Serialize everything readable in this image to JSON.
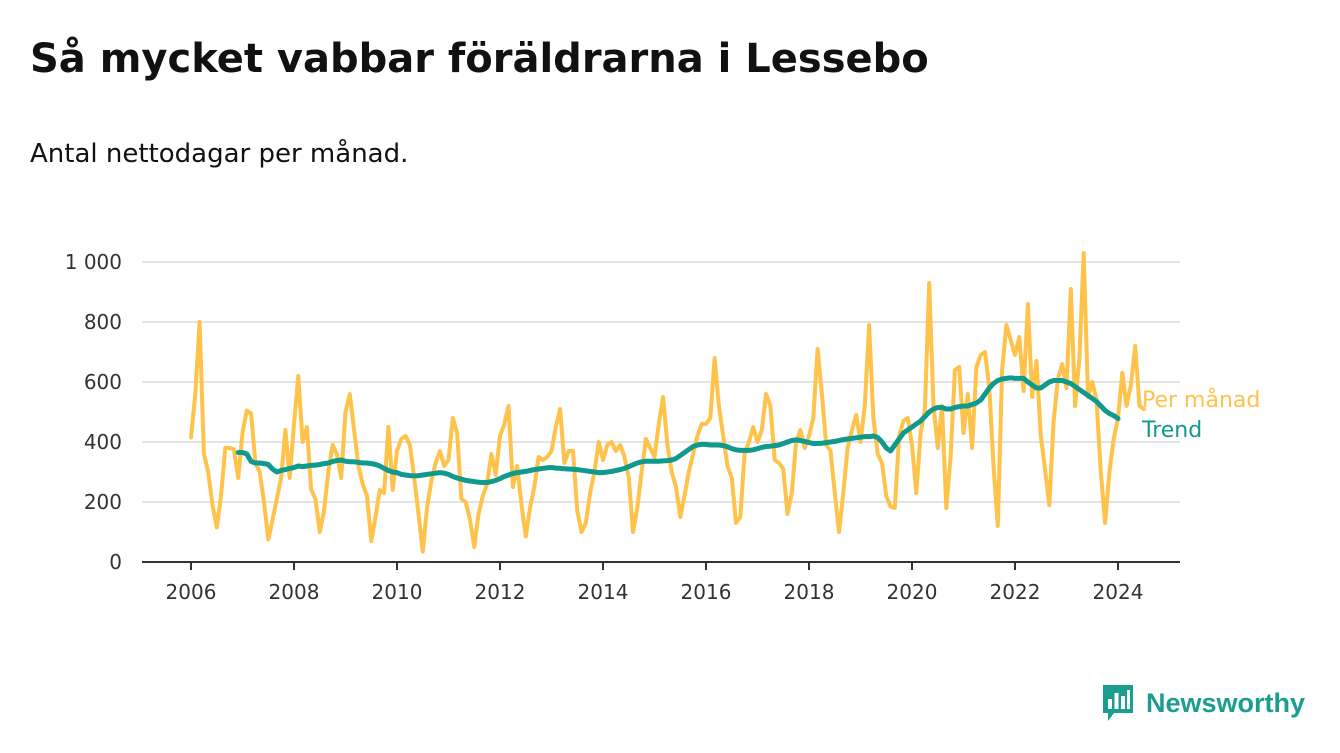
{
  "title": "Så mycket vabbar föräldrarna i Lessebo",
  "subtitle": "Antal nettodagar per månad.",
  "brand": {
    "name": "Newsworthy",
    "color": "#1a9e8f",
    "icon": "bar-chart-speech-bubble-icon"
  },
  "chart_data": {
    "type": "line",
    "xlabel": "",
    "ylabel": "",
    "x_ticks": [
      "2006",
      "2008",
      "2010",
      "2012",
      "2014",
      "2016",
      "2018",
      "2020",
      "2022",
      "2024"
    ],
    "y_ticks": [
      "0",
      "200",
      "400",
      "600",
      "800",
      "1 000"
    ],
    "ylim": [
      0,
      1050
    ],
    "xlim": [
      2005.0,
      2025.2
    ],
    "grid": true,
    "legend": "inline labels at line ends",
    "series": [
      {
        "name": "Per månad",
        "color": "#ffc24a",
        "start": 2006.0,
        "step_months": 1,
        "values": [
          415,
          560,
          800,
          360,
          300,
          190,
          115,
          220,
          380,
          380,
          375,
          280,
          430,
          505,
          495,
          330,
          300,
          200,
          75,
          140,
          210,
          280,
          440,
          280,
          460,
          620,
          400,
          450,
          240,
          210,
          100,
          170,
          300,
          390,
          360,
          280,
          500,
          560,
          440,
          320,
          260,
          220,
          70,
          150,
          240,
          230,
          450,
          240,
          370,
          410,
          420,
          390,
          280,
          160,
          35,
          180,
          270,
          330,
          370,
          320,
          340,
          480,
          430,
          210,
          200,
          140,
          50,
          160,
          220,
          260,
          360,
          290,
          420,
          460,
          520,
          250,
          320,
          190,
          85,
          180,
          250,
          350,
          340,
          350,
          370,
          450,
          510,
          330,
          370,
          370,
          170,
          100,
          130,
          230,
          300,
          400,
          340,
          390,
          400,
          370,
          390,
          350,
          280,
          100,
          180,
          300,
          410,
          380,
          350,
          460,
          550,
          390,
          300,
          250,
          150,
          220,
          300,
          360,
          420,
          460,
          460,
          480,
          680,
          520,
          420,
          320,
          280,
          130,
          150,
          360,
          400,
          450,
          400,
          440,
          560,
          520,
          340,
          330,
          310,
          160,
          230,
          400,
          440,
          380,
          420,
          480,
          710,
          560,
          390,
          370,
          230,
          100,
          230,
          380,
          440,
          490,
          400,
          520,
          790,
          480,
          360,
          330,
          220,
          185,
          180,
          420,
          470,
          480,
          390,
          230,
          430,
          510,
          930,
          520,
          380,
          520,
          180,
          350,
          640,
          650,
          430,
          560,
          380,
          650,
          690,
          700,
          580,
          320,
          120,
          640,
          790,
          740,
          690,
          750,
          570,
          860,
          550,
          670,
          420,
          310,
          190,
          470,
          610,
          660,
          580,
          910,
          520,
          680,
          1030,
          550,
          600,
          540,
          300,
          130,
          300,
          410,
          480,
          630,
          520,
          590,
          720,
          520,
          510
        ]
      },
      {
        "name": "Trend",
        "color": "#0f9a8d",
        "start": 2006.9167,
        "step_months": 1,
        "values": [
          365,
          365,
          360,
          335,
          330,
          330,
          328,
          325,
          310,
          300,
          305,
          308,
          312,
          315,
          320,
          318,
          320,
          322,
          323,
          325,
          328,
          330,
          335,
          338,
          340,
          336,
          334,
          334,
          332,
          330,
          330,
          328,
          325,
          320,
          312,
          305,
          300,
          298,
          292,
          290,
          288,
          287,
          288,
          290,
          292,
          294,
          296,
          298,
          296,
          292,
          285,
          280,
          276,
          272,
          270,
          268,
          266,
          265,
          265,
          268,
          272,
          278,
          285,
          290,
          295,
          298,
          300,
          302,
          305,
          308,
          310,
          312,
          314,
          315,
          313,
          312,
          311,
          310,
          309,
          308,
          306,
          304,
          302,
          300,
          298,
          298,
          300,
          302,
          305,
          308,
          312,
          318,
          324,
          330,
          334,
          336,
          336,
          336,
          336,
          337,
          338,
          340,
          345,
          355,
          365,
          375,
          385,
          390,
          392,
          392,
          390,
          390,
          390,
          388,
          384,
          378,
          374,
          372,
          372,
          372,
          374,
          378,
          382,
          385,
          386,
          388,
          390,
          395,
          400,
          405,
          407,
          405,
          402,
          398,
          395,
          395,
          396,
          398,
          400,
          402,
          405,
          408,
          410,
          412,
          414,
          416,
          418,
          418,
          420,
          415,
          400,
          380,
          370,
          390,
          410,
          430,
          440,
          450,
          460,
          470,
          485,
          500,
          510,
          515,
          515,
          510,
          510,
          515,
          518,
          520,
          520,
          525,
          530,
          540,
          560,
          580,
          595,
          605,
          610,
          612,
          614,
          612,
          612,
          612,
          600,
          590,
          580,
          580,
          590,
          600,
          605,
          605,
          605,
          600,
          595,
          585,
          575,
          565,
          555,
          545,
          535,
          520,
          505,
          495,
          488,
          478
        ]
      }
    ]
  }
}
